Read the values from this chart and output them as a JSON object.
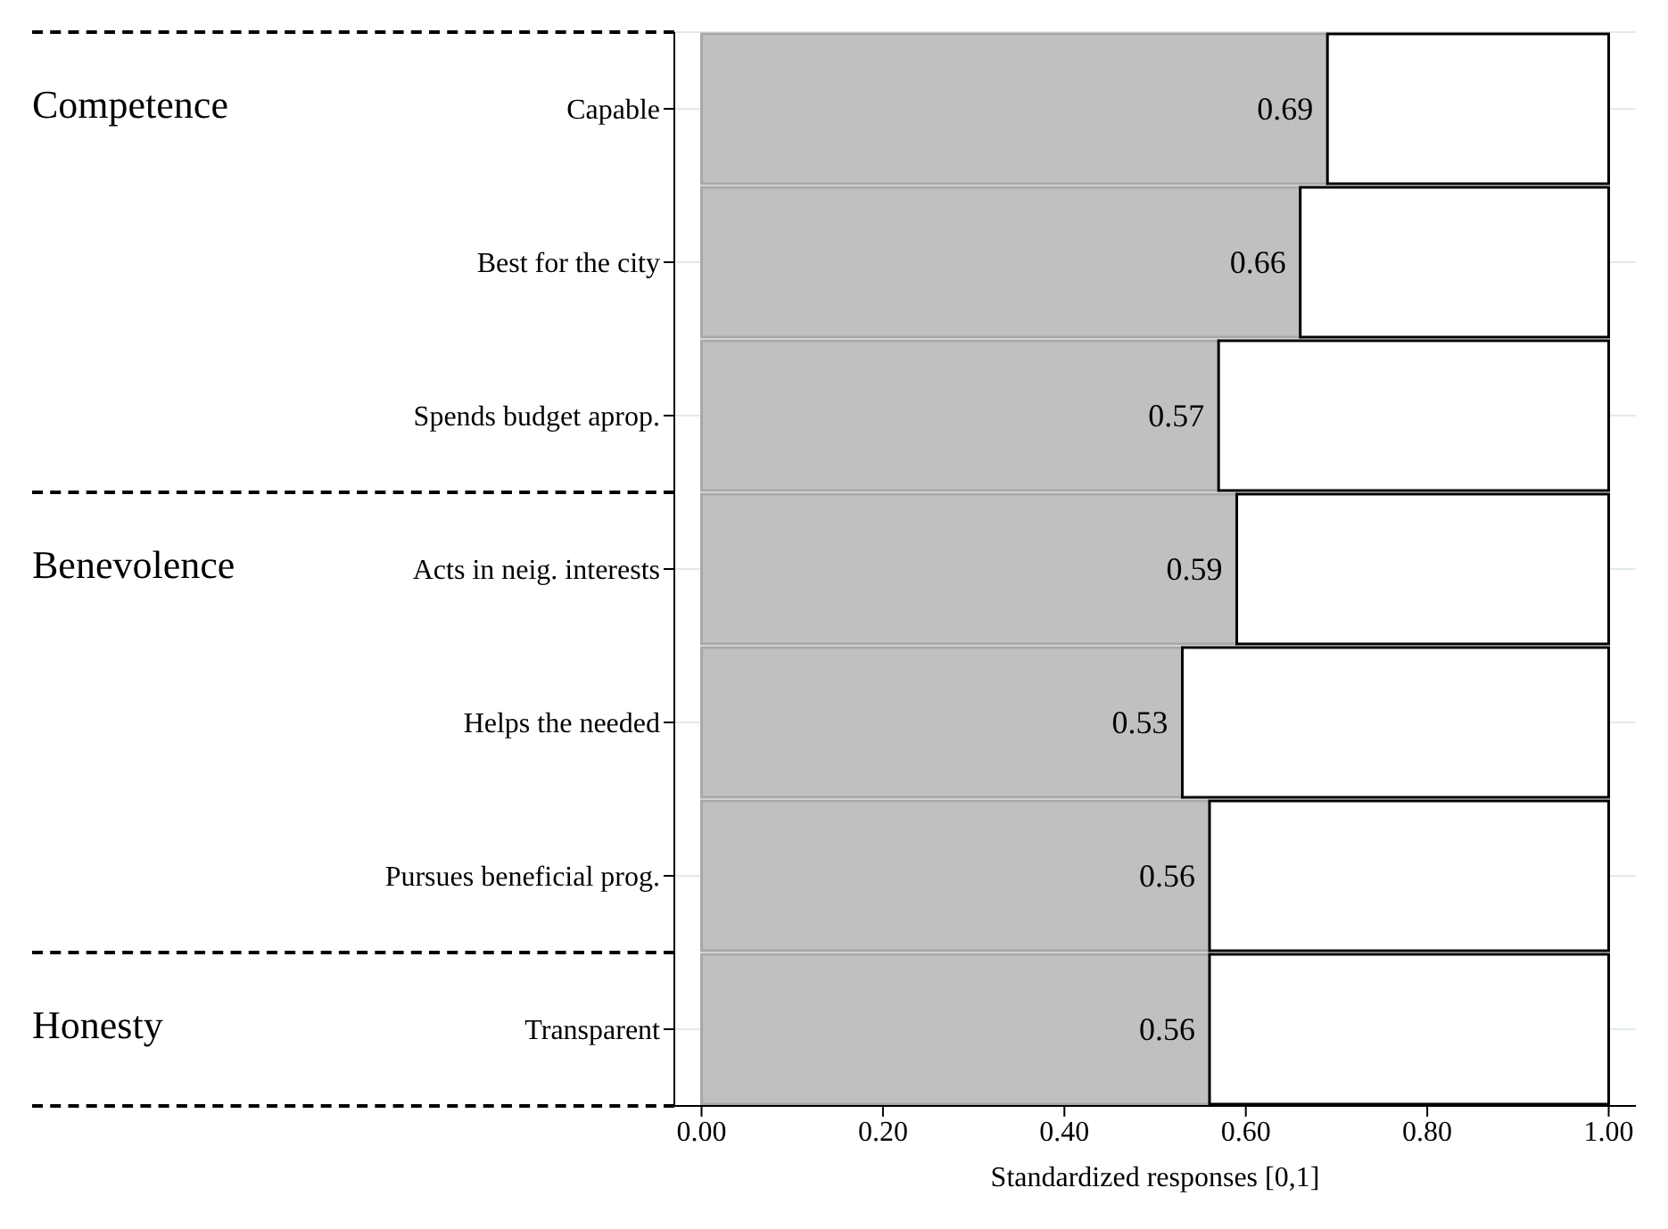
{
  "chart_data": {
    "type": "bar",
    "orientation": "horizontal",
    "stacked": true,
    "xlabel": "Standardized responses [0,1]",
    "categories": [
      "Capable",
      "Best for the city",
      "Spends budget aprop.",
      "Acts in neig. interests",
      "Helps the needed",
      "Pursues beneficial prog.",
      "Transparent"
    ],
    "series": [
      {
        "color": "#c0c0c0",
        "values": [
          0.69,
          0.66,
          0.57,
          0.59,
          0.53,
          0.56,
          0.56
        ],
        "value_labels": [
          "0.69",
          "0.66",
          "0.57",
          "0.59",
          "0.53",
          "0.56",
          "0.56"
        ]
      },
      {
        "color": "#ffffff",
        "values": [
          0.31,
          0.34,
          0.43,
          0.41,
          0.47,
          0.44,
          0.44
        ]
      }
    ],
    "xlim": [
      -0.03,
      1.03
    ],
    "xticks": [
      {
        "value": 0,
        "label": "0.00"
      },
      {
        "value": 0.2,
        "label": "0.20"
      },
      {
        "value": 0.4,
        "label": "0.40"
      },
      {
        "value": 0.6,
        "label": "0.60"
      },
      {
        "value": 0.8,
        "label": "0.80"
      },
      {
        "value": 1,
        "label": "1.00"
      }
    ],
    "annotations": [
      "Competence",
      "Benevolence",
      "Honesty"
    ],
    "grid": "y",
    "legend": false
  }
}
